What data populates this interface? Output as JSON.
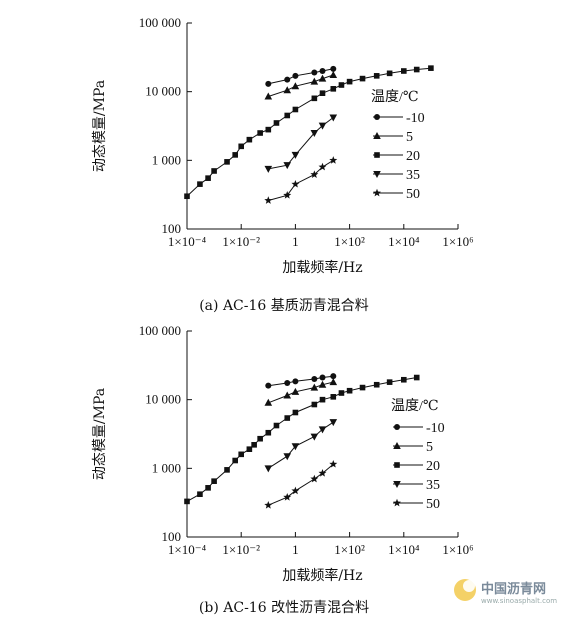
{
  "chart_data": [
    {
      "type": "line",
      "caption": "(a) AC-16 基质沥青混合料",
      "xlabel": "加载频率/Hz",
      "ylabel": "动态模量/MPa",
      "xscale": "log",
      "yscale": "log",
      "xlim": [
        0.0001,
        1000000
      ],
      "ylim": [
        100,
        100000
      ],
      "xtick_labels": [
        "1×10⁻⁴",
        "1×10⁻²",
        "1",
        "1×10²",
        "1×10⁴",
        "1×10⁶"
      ],
      "ytick_labels": [
        "100",
        "1 000",
        "10 000",
        "100 000"
      ],
      "legend_title": "温度/℃",
      "legend_position": "right",
      "series": [
        {
          "name": "-10",
          "marker": "circle",
          "x": [
            0.1,
            0.5,
            1,
            5,
            10,
            25
          ],
          "y": [
            13000,
            15000,
            17000,
            19000,
            20000,
            21500
          ]
        },
        {
          "name": "5",
          "marker": "triangle-up",
          "x": [
            0.1,
            0.5,
            1,
            5,
            10,
            25
          ],
          "y": [
            8500,
            10500,
            12000,
            14000,
            15500,
            17500
          ]
        },
        {
          "name": "20",
          "marker": "square",
          "x": [
            0.0001,
            0.0003,
            0.0006,
            0.001,
            0.003,
            0.006,
            0.01,
            0.02,
            0.05,
            0.1,
            0.2,
            0.5,
            1,
            5,
            10,
            25,
            50,
            100,
            300,
            1000,
            3000,
            10000,
            30000,
            100000
          ],
          "y": [
            300,
            450,
            550,
            700,
            950,
            1200,
            1600,
            2000,
            2500,
            2800,
            3500,
            4500,
            5500,
            8000,
            9500,
            11000,
            12500,
            14000,
            15500,
            17000,
            18500,
            20000,
            21000,
            22000
          ]
        },
        {
          "name": "35",
          "marker": "triangle-down",
          "x": [
            0.1,
            0.5,
            1,
            5,
            10,
            25
          ],
          "y": [
            750,
            850,
            1200,
            2500,
            3200,
            4200
          ]
        },
        {
          "name": "50",
          "marker": "star",
          "x": [
            0.1,
            0.5,
            1,
            5,
            10,
            25
          ],
          "y": [
            260,
            310,
            450,
            620,
            800,
            1000
          ]
        }
      ]
    },
    {
      "type": "line",
      "caption": "(b) AC-16 改性沥青混合料",
      "xlabel": "加载频率/Hz",
      "ylabel": "动态模量/MPa",
      "xscale": "log",
      "yscale": "log",
      "xlim": [
        0.0001,
        1000000
      ],
      "ylim": [
        100,
        100000
      ],
      "xtick_labels": [
        "1×10⁻⁴",
        "1×10⁻²",
        "1",
        "1×10²",
        "1×10⁴",
        "1×10⁶"
      ],
      "ytick_labels": [
        "100",
        "1 000",
        "10 000",
        "100 000"
      ],
      "legend_title": "温度/℃",
      "legend_position": "right",
      "series": [
        {
          "name": "-10",
          "marker": "circle",
          "x": [
            0.1,
            0.5,
            1,
            5,
            10,
            25
          ],
          "y": [
            16000,
            17500,
            18500,
            20000,
            21000,
            22000
          ]
        },
        {
          "name": "5",
          "marker": "triangle-up",
          "x": [
            0.1,
            0.5,
            1,
            5,
            10,
            25
          ],
          "y": [
            9000,
            11500,
            13000,
            15000,
            16500,
            18000
          ]
        },
        {
          "name": "20",
          "marker": "square",
          "x": [
            0.0001,
            0.0003,
            0.0006,
            0.001,
            0.003,
            0.006,
            0.01,
            0.02,
            0.03,
            0.05,
            0.1,
            0.2,
            0.5,
            1,
            5,
            10,
            25,
            50,
            100,
            300,
            1000,
            3000,
            10000,
            30000
          ],
          "y": [
            330,
            420,
            520,
            650,
            950,
            1300,
            1600,
            1900,
            2200,
            2700,
            3300,
            4200,
            5400,
            6500,
            8500,
            10000,
            11000,
            12500,
            13500,
            15000,
            16500,
            18000,
            19500,
            21000
          ]
        },
        {
          "name": "35",
          "marker": "triangle-down",
          "x": [
            0.1,
            0.5,
            1,
            5,
            10,
            25
          ],
          "y": [
            1000,
            1500,
            2100,
            2900,
            3700,
            4700
          ]
        },
        {
          "name": "50",
          "marker": "star",
          "x": [
            0.1,
            0.5,
            1,
            5,
            10,
            25
          ],
          "y": [
            290,
            380,
            470,
            700,
            850,
            1150
          ]
        }
      ]
    }
  ],
  "watermark": {
    "text": "中国沥青网",
    "sub": "www.sinoasphalt.com"
  }
}
